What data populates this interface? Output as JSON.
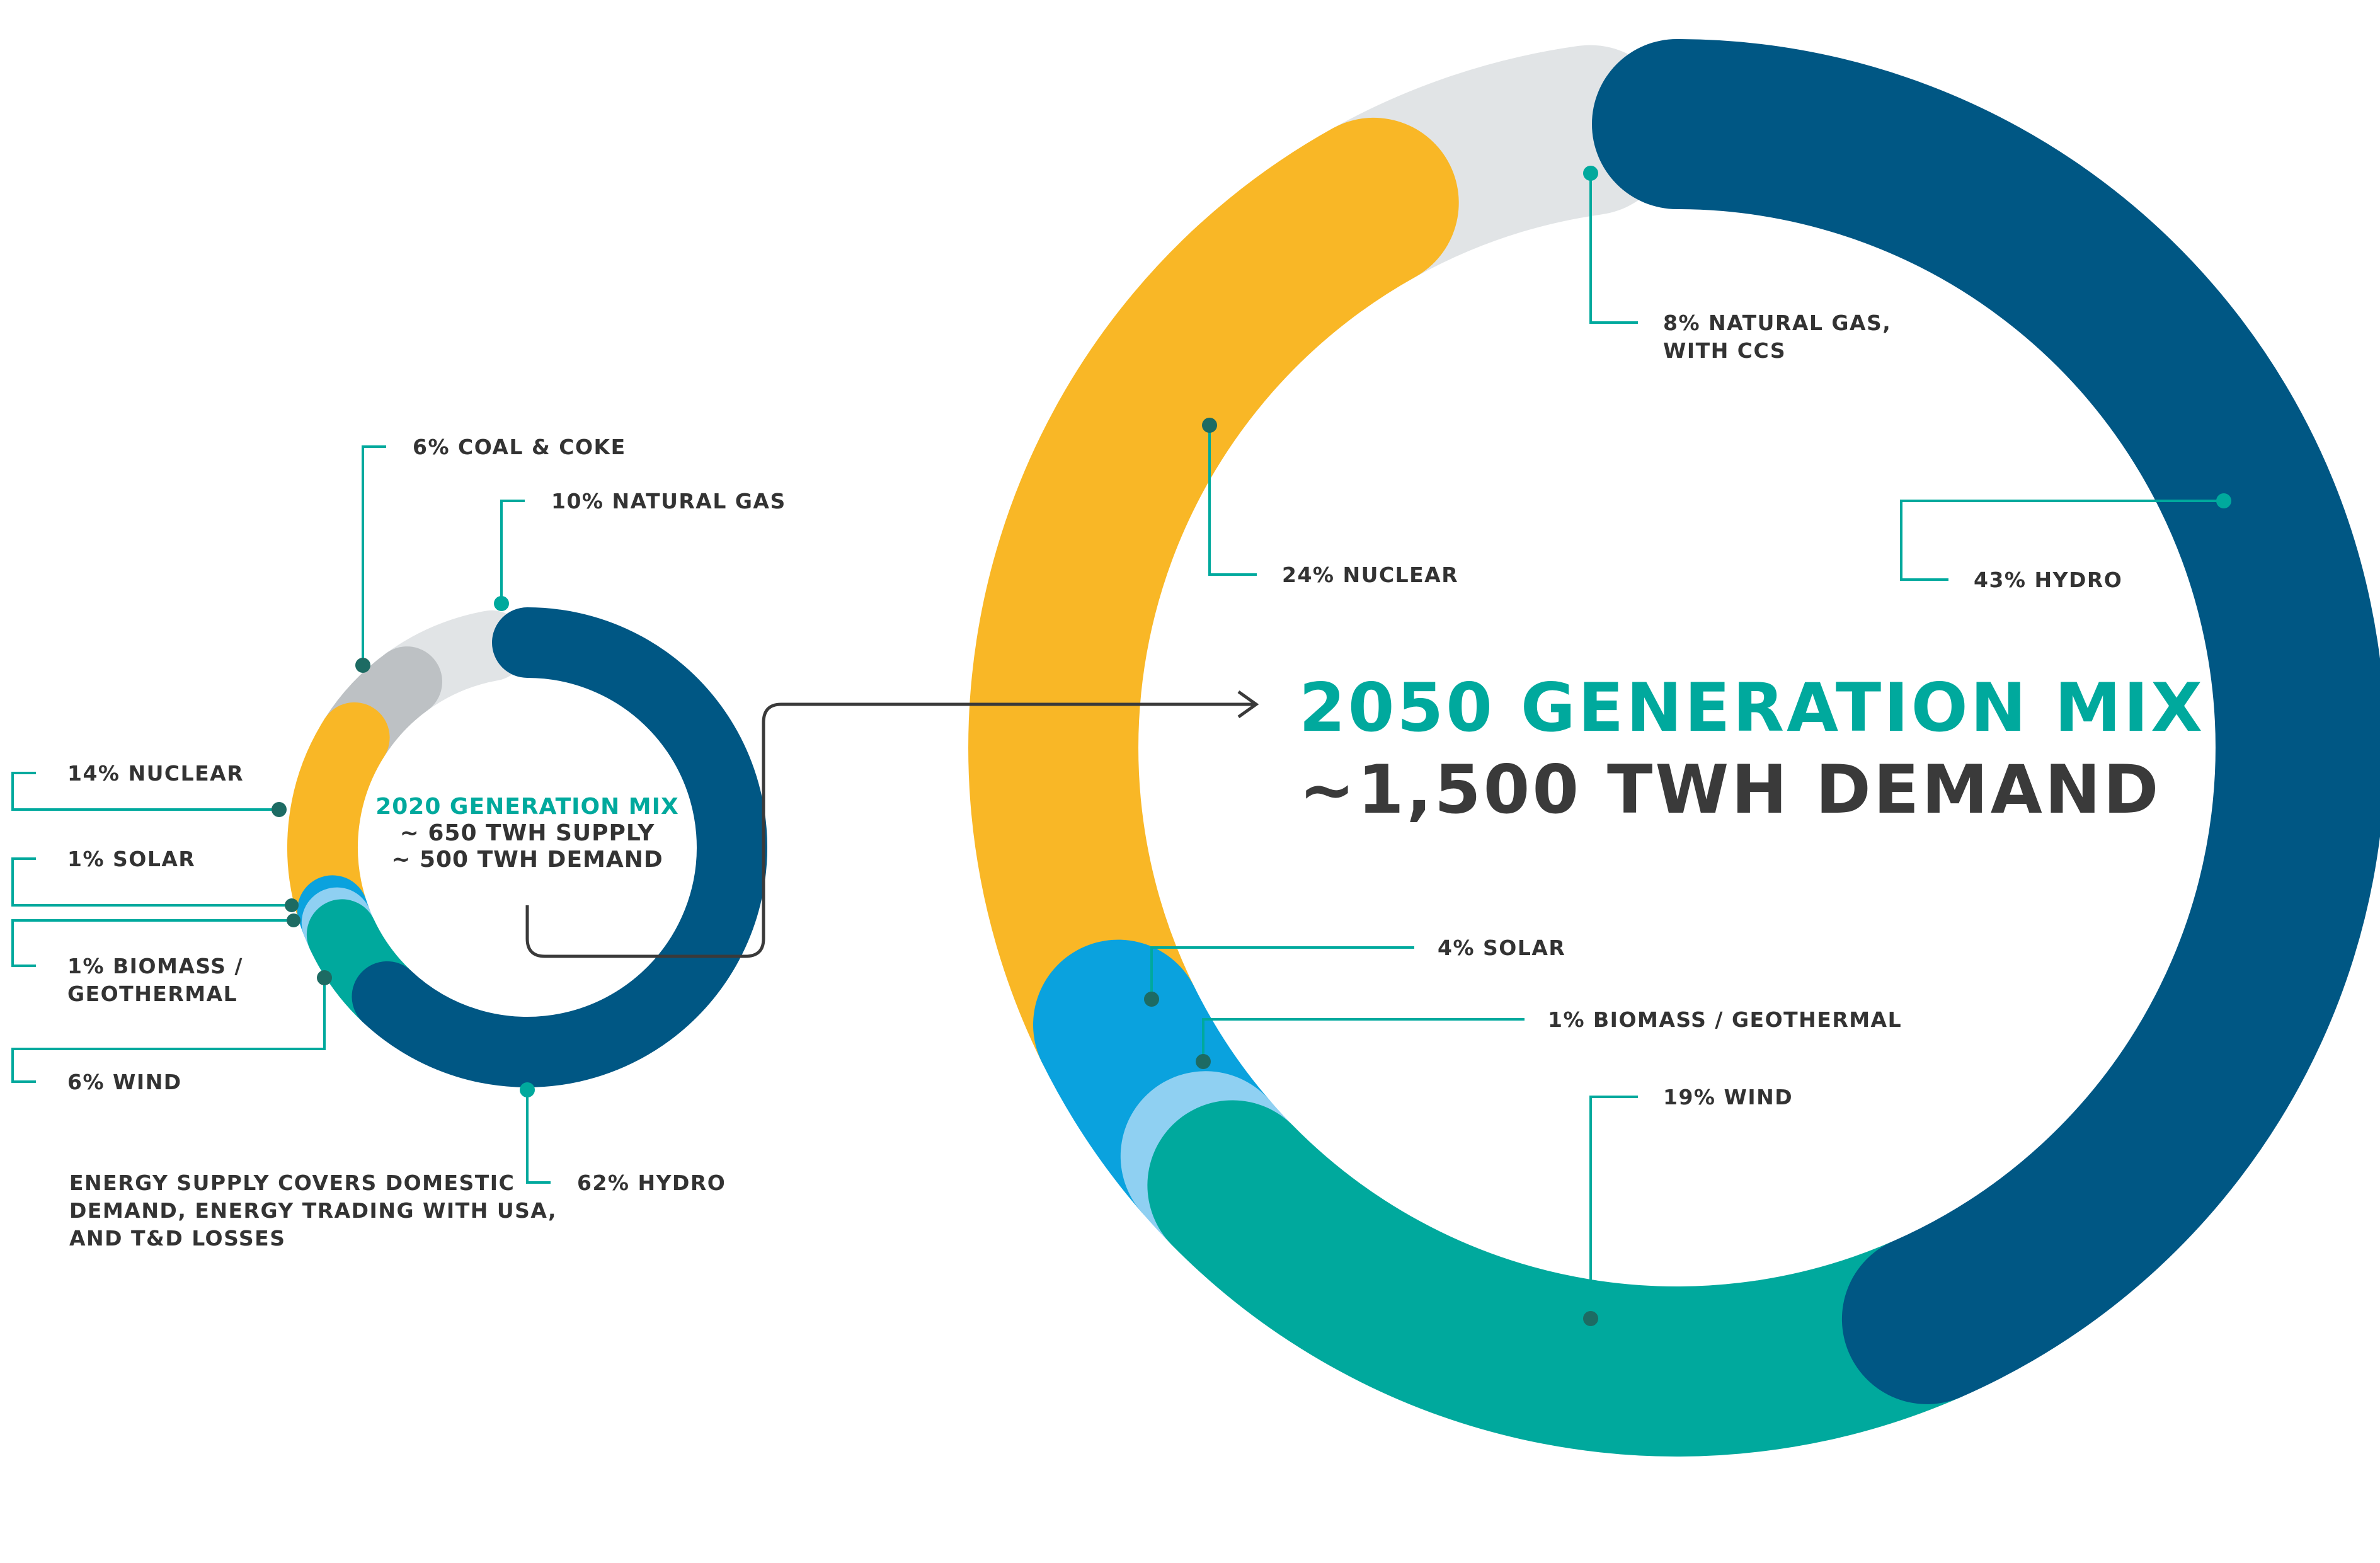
{
  "chart_data": [
    {
      "type": "pie",
      "donut": true,
      "title": "2020 GENERATION MIX",
      "subtitle_lines": [
        "~ 650 TWH SUPPLY",
        "~ 500 TWH DEMAND"
      ],
      "slices": [
        {
          "label": "62% HYDRO",
          "value": 62,
          "color": "#005784"
        },
        {
          "label": "6% WIND",
          "value": 6,
          "color": "#00a99d"
        },
        {
          "label": "1% BIOMASS / GEOTHERMAL",
          "label_lines": [
            "1% BIOMASS /",
            "GEOTHERMAL"
          ],
          "value": 1,
          "color": "#8fd0f2"
        },
        {
          "label": "1% SOLAR",
          "value": 1,
          "color": "#0aa2de"
        },
        {
          "label": "14% NUCLEAR",
          "value": 14,
          "color": "#f9b726"
        },
        {
          "label": "6% COAL & COKE",
          "value": 6,
          "color": "#bdc1c4"
        },
        {
          "label": "10% NATURAL GAS",
          "value": 10,
          "color": "#e1e4e6"
        }
      ],
      "note_lines": [
        "ENERGY SUPPLY COVERS DOMESTIC",
        "DEMAND, ENERGY TRADING WITH USA,",
        "AND T&D LOSSES"
      ]
    },
    {
      "type": "pie",
      "donut": true,
      "title": "2050 GENERATION MIX",
      "subtitle_lines": [
        "~1,500 TWH DEMAND"
      ],
      "slices": [
        {
          "label": "43% HYDRO",
          "value": 43,
          "color": "#005784"
        },
        {
          "label": "19% WIND",
          "value": 19,
          "color": "#00a99d"
        },
        {
          "label": "1% BIOMASS / GEOTHERMAL",
          "value": 1,
          "color": "#8fd0f2"
        },
        {
          "label": "4% SOLAR",
          "value": 4,
          "color": "#0aa2de"
        },
        {
          "label": "24% NUCLEAR",
          "value": 24,
          "color": "#f9b726"
        },
        {
          "label": "8% NATURAL GAS, WITH CCS",
          "label_lines": [
            "8% NATURAL GAS,",
            "WITH CCS"
          ],
          "value": 8,
          "color": "#e1e4e6"
        }
      ]
    }
  ]
}
